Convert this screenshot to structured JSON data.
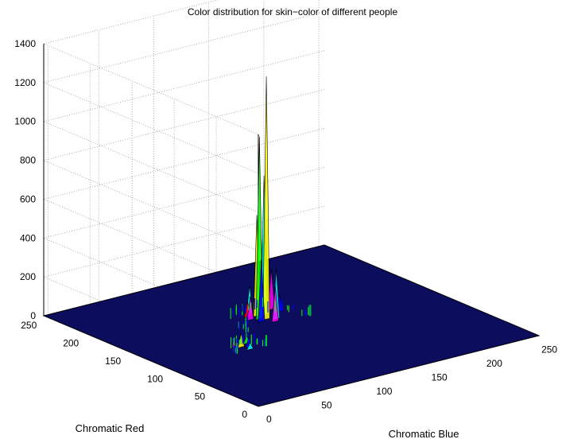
{
  "chart_data": {
    "type": "surface",
    "title": "Color distribution for skin−color of different people",
    "xlabel": "Chromatic Blue",
    "ylabel": "Chromatic Red",
    "zlabel": "",
    "xlim": [
      0,
      255
    ],
    "ylim": [
      0,
      255
    ],
    "zlim": [
      0,
      1400
    ],
    "x_ticks": [
      "0",
      "50",
      "100",
      "150",
      "200",
      "250"
    ],
    "y_ticks": [
      "0",
      "50",
      "100",
      "150",
      "200",
      "250"
    ],
    "z_ticks": [
      "0",
      "200",
      "400",
      "600",
      "800",
      "1000",
      "1200",
      "1400"
    ],
    "grid": true,
    "surface_color": "#0d0d5e",
    "peak_colors": [
      "#0000ff",
      "#00ffff",
      "#ff00ff",
      "#00ff00",
      "#ff0000",
      "#ffff00"
    ],
    "peaks": [
      {
        "x": 122,
        "y": 150,
        "z": 1250
      },
      {
        "x": 118,
        "y": 153,
        "z": 940
      },
      {
        "x": 126,
        "y": 158,
        "z": 720
      },
      {
        "x": 130,
        "y": 162,
        "z": 570
      },
      {
        "x": 121,
        "y": 160,
        "z": 520
      },
      {
        "x": 134,
        "y": 170,
        "z": 380
      },
      {
        "x": 116,
        "y": 148,
        "z": 320
      },
      {
        "x": 128,
        "y": 146,
        "z": 260
      },
      {
        "x": 138,
        "y": 165,
        "z": 210
      },
      {
        "x": 124,
        "y": 142,
        "z": 180
      },
      {
        "x": 119,
        "y": 166,
        "z": 150
      },
      {
        "x": 112,
        "y": 156,
        "z": 120
      },
      {
        "x": 132,
        "y": 152,
        "z": 110
      },
      {
        "x": 140,
        "y": 158,
        "z": 90
      },
      {
        "x": 114,
        "y": 162,
        "z": 80
      },
      {
        "x": 70,
        "y": 112,
        "z": 70
      },
      {
        "x": 74,
        "y": 108,
        "z": 55
      },
      {
        "x": 66,
        "y": 115,
        "z": 45
      },
      {
        "x": 78,
        "y": 116,
        "z": 40
      },
      {
        "x": 72,
        "y": 104,
        "z": 35
      }
    ]
  }
}
